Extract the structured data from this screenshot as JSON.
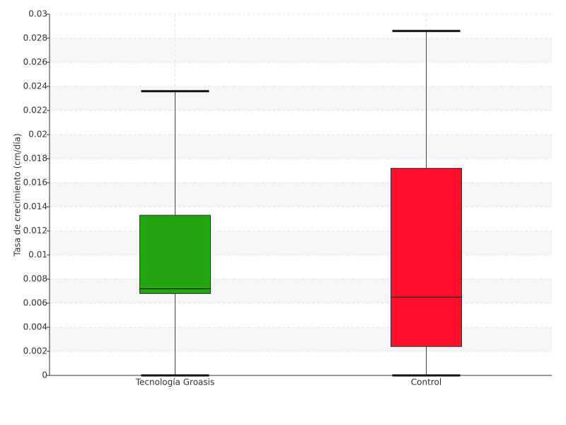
{
  "chart_data": {
    "type": "box",
    "y_label": "Tasa de crecimiento (cm/día)",
    "categories": [
      "Tecnología Groasis",
      "Control"
    ],
    "colors": [
      "#22a50f",
      "#ff0e29"
    ],
    "min": [
      0,
      0
    ],
    "q1": [
      0.0068,
      0.0024
    ],
    "median": [
      0.0072,
      0.0065
    ],
    "q3": [
      0.0133,
      0.0172
    ],
    "max": [
      0.0236,
      0.0286
    ],
    "ylim": [
      0,
      0.03
    ],
    "yticks": [
      0,
      0.002,
      0.004,
      0.006,
      0.008,
      0.01,
      0.012,
      0.014,
      0.016,
      0.018,
      0.02,
      0.022,
      0.024,
      0.026,
      0.028,
      0.03
    ],
    "grid": true
  }
}
